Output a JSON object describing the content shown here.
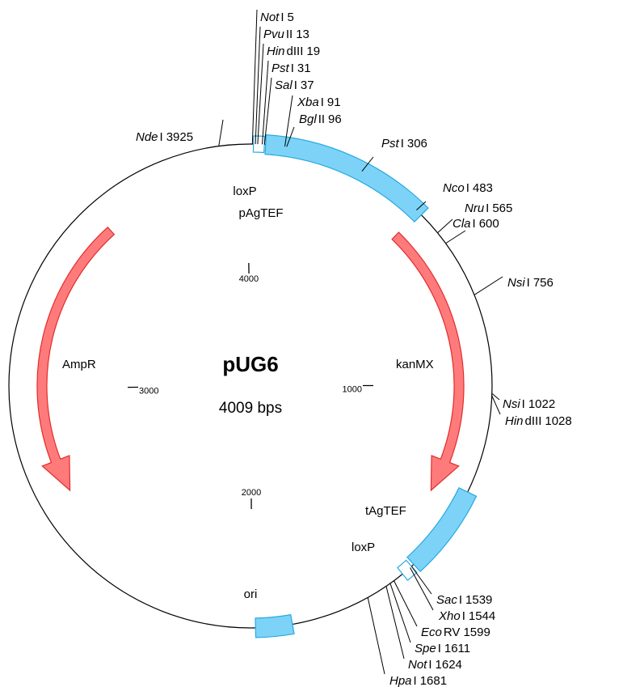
{
  "title": "pUG6",
  "length": {
    "value": 4009,
    "label": "4009 bps"
  },
  "sites": [
    {
      "italic": "Not",
      "suffix": "I",
      "position": 5
    },
    {
      "italic": "Pvu",
      "suffix": "II",
      "position": 13
    },
    {
      "italic": "Hin",
      "suffix": "dIII",
      "position": 19
    },
    {
      "italic": "Pst",
      "suffix": "I",
      "position": 31
    },
    {
      "italic": "Sal",
      "suffix": "I",
      "position": 37
    },
    {
      "italic": "Xba",
      "suffix": "I",
      "position": 91
    },
    {
      "italic": "Bgl",
      "suffix": "II",
      "position": 96
    },
    {
      "italic": "Nde",
      "suffix": "I",
      "position": 3925
    },
    {
      "italic": "Pst",
      "suffix": "I",
      "position": 306
    },
    {
      "italic": "Nco",
      "suffix": "I",
      "position": 483
    },
    {
      "italic": "Nru",
      "suffix": "I",
      "position": 565
    },
    {
      "italic": "Cla",
      "suffix": "I",
      "position": 600
    },
    {
      "italic": "Nsi",
      "suffix": "I",
      "position": 756
    },
    {
      "italic": "Nsi",
      "suffix": "I",
      "position": 1022
    },
    {
      "italic": "Hin",
      "suffix": "dIII",
      "position": 1028
    },
    {
      "italic": "Sac",
      "suffix": "I",
      "position": 1539
    },
    {
      "italic": "Xho",
      "suffix": "I",
      "position": 1544
    },
    {
      "italic": "Eco",
      "suffix": "RV",
      "position": 1599
    },
    {
      "italic": "Spe",
      "suffix": "I",
      "position": 1611
    },
    {
      "italic": "Not",
      "suffix": "I",
      "position": 1624
    },
    {
      "italic": "Hpa",
      "suffix": "I",
      "position": 1681
    }
  ],
  "features": [
    {
      "label": "loxP"
    },
    {
      "label": "pAgTEF"
    },
    {
      "label": "kanMX"
    },
    {
      "label": "AmpR"
    },
    {
      "label": "tAgTEF"
    },
    {
      "label": "loxP"
    },
    {
      "label": "ori"
    }
  ],
  "scale": [
    1000,
    2000,
    3000,
    4000
  ]
}
